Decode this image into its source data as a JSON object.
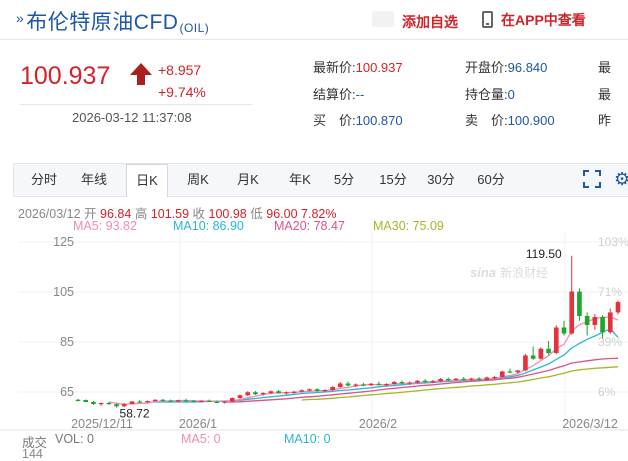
{
  "header": {
    "arrows": "»",
    "name": "布伦特原油CFD",
    "code": "(OIL)",
    "fav_label": "添加自选",
    "app_label": "在APP中查看"
  },
  "quote": {
    "price": "100.937",
    "change": "+8.957",
    "change_pct": "+9.74%",
    "datetime": "2026-03-12 11:37:08",
    "fields": [
      {
        "label": "最新价:",
        "value": "100.937",
        "color": "red"
      },
      {
        "label": "开盘价:",
        "value": "96.840",
        "color": "blue"
      },
      {
        "label": "结算价:",
        "value": "--",
        "color": "blue"
      },
      {
        "label": "持仓量:",
        "value": "0",
        "color": "blue"
      },
      {
        "label": "买　价:",
        "value": "100.870",
        "color": "blue"
      },
      {
        "label": "卖　价:",
        "value": "100.900",
        "color": "blue"
      },
      {
        "label": "最",
        "value": "",
        "color": "blue"
      },
      {
        "label": "最",
        "value": "",
        "color": "blue"
      },
      {
        "label": "昨",
        "value": "",
        "color": "blue"
      }
    ]
  },
  "tabs": [
    "分时",
    "年线",
    "日K",
    "周K",
    "月K",
    "年K",
    "5分",
    "15分",
    "30分",
    "60分"
  ],
  "active_tab": "日K",
  "icons": {
    "fullscreen": "fullscreen-icon",
    "settings": "gear-icon",
    "buy": "up-arrow-icon"
  },
  "ohlc": {
    "date": "2026/03/12",
    "open_label": "开",
    "open": "96.84",
    "high_label": "高",
    "high": "101.59",
    "close_label": "收",
    "close": "100.98",
    "low_label": "低",
    "low": "96.00",
    "pct": "7.82%"
  },
  "ma": [
    {
      "label": "MA5: 93.82",
      "color": "#f08cb4"
    },
    {
      "label": "MA10: 86.90",
      "color": "#29b8d4"
    },
    {
      "label": "MA20: 78.47",
      "color": "#e0508a"
    },
    {
      "label": "MA30: 75.09",
      "color": "#a6b728"
    }
  ],
  "volume": {
    "label": "成交",
    "vol": "VOL: 0",
    "ma5": "MA5: 0",
    "ma10": "MA10: 0",
    "scale_partial": "144"
  },
  "watermark": {
    "logo": "sina",
    "text": "新浪财经"
  },
  "chart_data": {
    "type": "candlestick",
    "y_ticks": [
      125,
      105,
      85,
      65
    ],
    "ylim": [
      57,
      127
    ],
    "pct_ticks": [
      "103%",
      "71%",
      "39%",
      "6%"
    ],
    "x_ticks": [
      "2025/12/11",
      "2026/1",
      "2026/2",
      "2026/3/12"
    ],
    "annotations": [
      {
        "label": "119.50",
        "note": "high"
      },
      {
        "label": "58.72",
        "note": "low"
      }
    ],
    "colors": {
      "up": "#e3323b",
      "down": "#1ea52c"
    },
    "candles": [
      [
        61.9,
        62.3,
        61.2,
        61.8
      ],
      [
        61.8,
        62.0,
        60.9,
        61.0
      ],
      [
        61.0,
        61.5,
        59.8,
        60.2
      ],
      [
        60.2,
        60.8,
        59.5,
        60.6
      ],
      [
        60.6,
        61.0,
        59.9,
        60.1
      ],
      [
        60.1,
        60.4,
        58.7,
        59.3
      ],
      [
        59.3,
        60.5,
        59.0,
        60.2
      ],
      [
        60.2,
        61.4,
        60.0,
        61.2
      ],
      [
        61.2,
        61.8,
        60.6,
        61.0
      ],
      [
        61.0,
        61.6,
        60.4,
        61.4
      ],
      [
        61.4,
        62.1,
        61.1,
        61.9
      ],
      [
        61.9,
        62.2,
        61.3,
        61.6
      ],
      [
        61.6,
        62.0,
        61.1,
        61.3
      ],
      [
        61.3,
        61.9,
        60.9,
        61.7
      ],
      [
        61.7,
        62.3,
        61.3,
        61.5
      ],
      [
        61.5,
        61.8,
        60.9,
        61.2
      ],
      [
        61.2,
        61.7,
        60.8,
        61.5
      ],
      [
        61.5,
        62.0,
        61.0,
        61.1
      ],
      [
        61.1,
        61.6,
        60.6,
        60.9
      ],
      [
        60.9,
        61.4,
        60.4,
        61.2
      ],
      [
        61.2,
        62.8,
        61.0,
        62.6
      ],
      [
        62.6,
        63.9,
        62.3,
        63.7
      ],
      [
        63.7,
        65.3,
        63.4,
        64.9
      ],
      [
        64.9,
        65.4,
        63.8,
        64.1
      ],
      [
        64.1,
        64.9,
        63.5,
        64.6
      ],
      [
        64.6,
        65.6,
        64.2,
        65.3
      ],
      [
        65.3,
        65.8,
        64.3,
        64.6
      ],
      [
        64.6,
        65.2,
        63.9,
        64.9
      ],
      [
        64.9,
        65.5,
        64.4,
        65.1
      ],
      [
        65.1,
        66.0,
        64.8,
        65.7
      ],
      [
        65.7,
        66.4,
        65.2,
        66.1
      ],
      [
        66.1,
        66.5,
        65.0,
        65.4
      ],
      [
        65.4,
        66.1,
        64.9,
        65.8
      ],
      [
        65.8,
        67.3,
        65.5,
        67.0
      ],
      [
        67.0,
        69.0,
        66.7,
        68.4
      ],
      [
        68.4,
        69.2,
        67.2,
        67.6
      ],
      [
        67.6,
        68.4,
        66.9,
        68.0
      ],
      [
        68.0,
        68.7,
        67.3,
        67.7
      ],
      [
        67.7,
        68.6,
        67.4,
        68.3
      ],
      [
        68.3,
        69.1,
        67.6,
        67.9
      ],
      [
        67.9,
        68.5,
        67.1,
        68.2
      ],
      [
        68.2,
        69.4,
        67.9,
        69.0
      ],
      [
        69.0,
        69.6,
        68.1,
        68.5
      ],
      [
        68.5,
        69.2,
        67.8,
        68.8
      ],
      [
        68.8,
        69.8,
        68.4,
        69.5
      ],
      [
        69.5,
        70.2,
        68.6,
        69.0
      ],
      [
        69.0,
        69.8,
        68.5,
        69.3
      ],
      [
        69.3,
        70.6,
        69.0,
        70.2
      ],
      [
        70.2,
        70.8,
        69.3,
        69.8
      ],
      [
        69.8,
        70.6,
        69.4,
        70.3
      ],
      [
        70.3,
        71.0,
        69.6,
        70.0
      ],
      [
        70.0,
        70.7,
        69.5,
        70.4
      ],
      [
        70.4,
        70.9,
        69.6,
        69.9
      ],
      [
        69.9,
        71.2,
        69.6,
        70.8
      ],
      [
        70.8,
        71.5,
        70.1,
        71.0
      ],
      [
        71.0,
        73.5,
        70.8,
        73.2
      ],
      [
        73.2,
        74.4,
        72.5,
        72.9
      ],
      [
        72.9,
        73.8,
        72.4,
        73.6
      ],
      [
        73.6,
        80.2,
        73.3,
        79.6
      ],
      [
        79.6,
        83.2,
        77.9,
        78.3
      ],
      [
        78.3,
        82.9,
        78.0,
        82.3
      ],
      [
        82.3,
        85.4,
        79.9,
        80.6
      ],
      [
        80.6,
        91.7,
        80.2,
        90.8
      ],
      [
        90.8,
        93.5,
        87.6,
        88.4
      ],
      [
        88.4,
        119.5,
        87.9,
        105.2
      ],
      [
        105.2,
        106.4,
        93.5,
        95.4
      ],
      [
        95.4,
        96.9,
        87.6,
        91.8
      ],
      [
        91.8,
        96.2,
        89.9,
        95.0
      ],
      [
        95.0,
        95.8,
        86.4,
        88.9
      ],
      [
        88.9,
        98.4,
        88.3,
        96.84
      ],
      [
        96.84,
        101.59,
        96.0,
        100.98
      ]
    ],
    "ma5": [
      null,
      null,
      null,
      null,
      61.0,
      60.5,
      60.1,
      60.3,
      60.4,
      60.6,
      61.2,
      61.4,
      61.4,
      61.6,
      61.6,
      61.5,
      61.4,
      61.4,
      61.2,
      61.2,
      61.5,
      62.0,
      62.7,
      63.3,
      64.0,
      64.5,
      64.7,
      64.7,
      64.9,
      65.1,
      65.3,
      65.5,
      65.6,
      65.9,
      66.5,
      66.8,
      67.4,
      67.9,
      68.0,
      67.9,
      68.0,
      68.2,
      68.4,
      68.5,
      68.8,
      69.0,
      69.2,
      69.4,
      69.6,
      69.7,
      69.9,
      70.0,
      70.1,
      70.2,
      70.4,
      71.1,
      71.6,
      72.3,
      74.1,
      75.5,
      77.6,
      79.5,
      82.4,
      84.1,
      89.5,
      91.9,
      93.1,
      94.4,
      94.9,
      95.0,
      93.82
    ],
    "ma10": [
      null,
      null,
      null,
      null,
      null,
      null,
      null,
      null,
      null,
      60.9,
      61.0,
      61.0,
      61.0,
      61.0,
      61.0,
      61.0,
      61.1,
      61.3,
      61.3,
      61.4,
      61.5,
      61.7,
      62.1,
      62.4,
      62.8,
      63.1,
      63.4,
      63.7,
      64.1,
      64.4,
      64.6,
      64.8,
      65.0,
      65.3,
      65.6,
      65.8,
      66.1,
      66.4,
      66.7,
      67.1,
      67.4,
      67.6,
      67.9,
      68.2,
      68.5,
      68.6,
      68.8,
      69.1,
      69.3,
      69.4,
      69.6,
      69.8,
      69.9,
      70.1,
      70.3,
      70.7,
      71.1,
      71.6,
      72.6,
      73.8,
      75.0,
      76.2,
      78.1,
      79.8,
      82.6,
      84.4,
      86.1,
      87.4,
      88.9,
      90.3,
      86.9
    ],
    "ma20": [
      null,
      null,
      null,
      null,
      null,
      null,
      null,
      null,
      null,
      null,
      null,
      null,
      null,
      null,
      null,
      null,
      null,
      null,
      null,
      61.0,
      61.0,
      61.1,
      61.3,
      61.5,
      61.7,
      61.9,
      62.1,
      62.3,
      62.6,
      62.9,
      63.1,
      63.3,
      63.6,
      63.9,
      64.2,
      64.5,
      64.8,
      65.1,
      65.4,
      65.8,
      66.2,
      66.5,
      66.8,
      67.1,
      67.4,
      67.7,
      67.9,
      68.2,
      68.5,
      68.8,
      69.1,
      69.3,
      69.5,
      69.7,
      69.9,
      70.2,
      70.5,
      70.9,
      71.5,
      72.2,
      72.9,
      73.6,
      74.6,
      75.5,
      76.6,
      77.0,
      77.5,
      77.9,
      78.2,
      78.4,
      78.47
    ],
    "ma30": [
      null,
      null,
      null,
      null,
      null,
      null,
      null,
      null,
      null,
      null,
      null,
      null,
      null,
      null,
      null,
      null,
      null,
      null,
      null,
      null,
      null,
      null,
      null,
      null,
      null,
      null,
      null,
      null,
      null,
      61.8,
      62.0,
      62.1,
      62.3,
      62.5,
      62.8,
      63.0,
      63.3,
      63.6,
      63.9,
      64.1,
      64.4,
      64.6,
      64.9,
      65.2,
      65.5,
      65.8,
      66.1,
      66.4,
      66.6,
      66.9,
      67.1,
      67.4,
      67.6,
      67.9,
      68.1,
      68.4,
      68.7,
      69.0,
      69.5,
      70.0,
      70.6,
      71.1,
      71.8,
      72.5,
      73.4,
      73.9,
      74.2,
      74.5,
      74.7,
      74.9,
      75.09
    ]
  }
}
